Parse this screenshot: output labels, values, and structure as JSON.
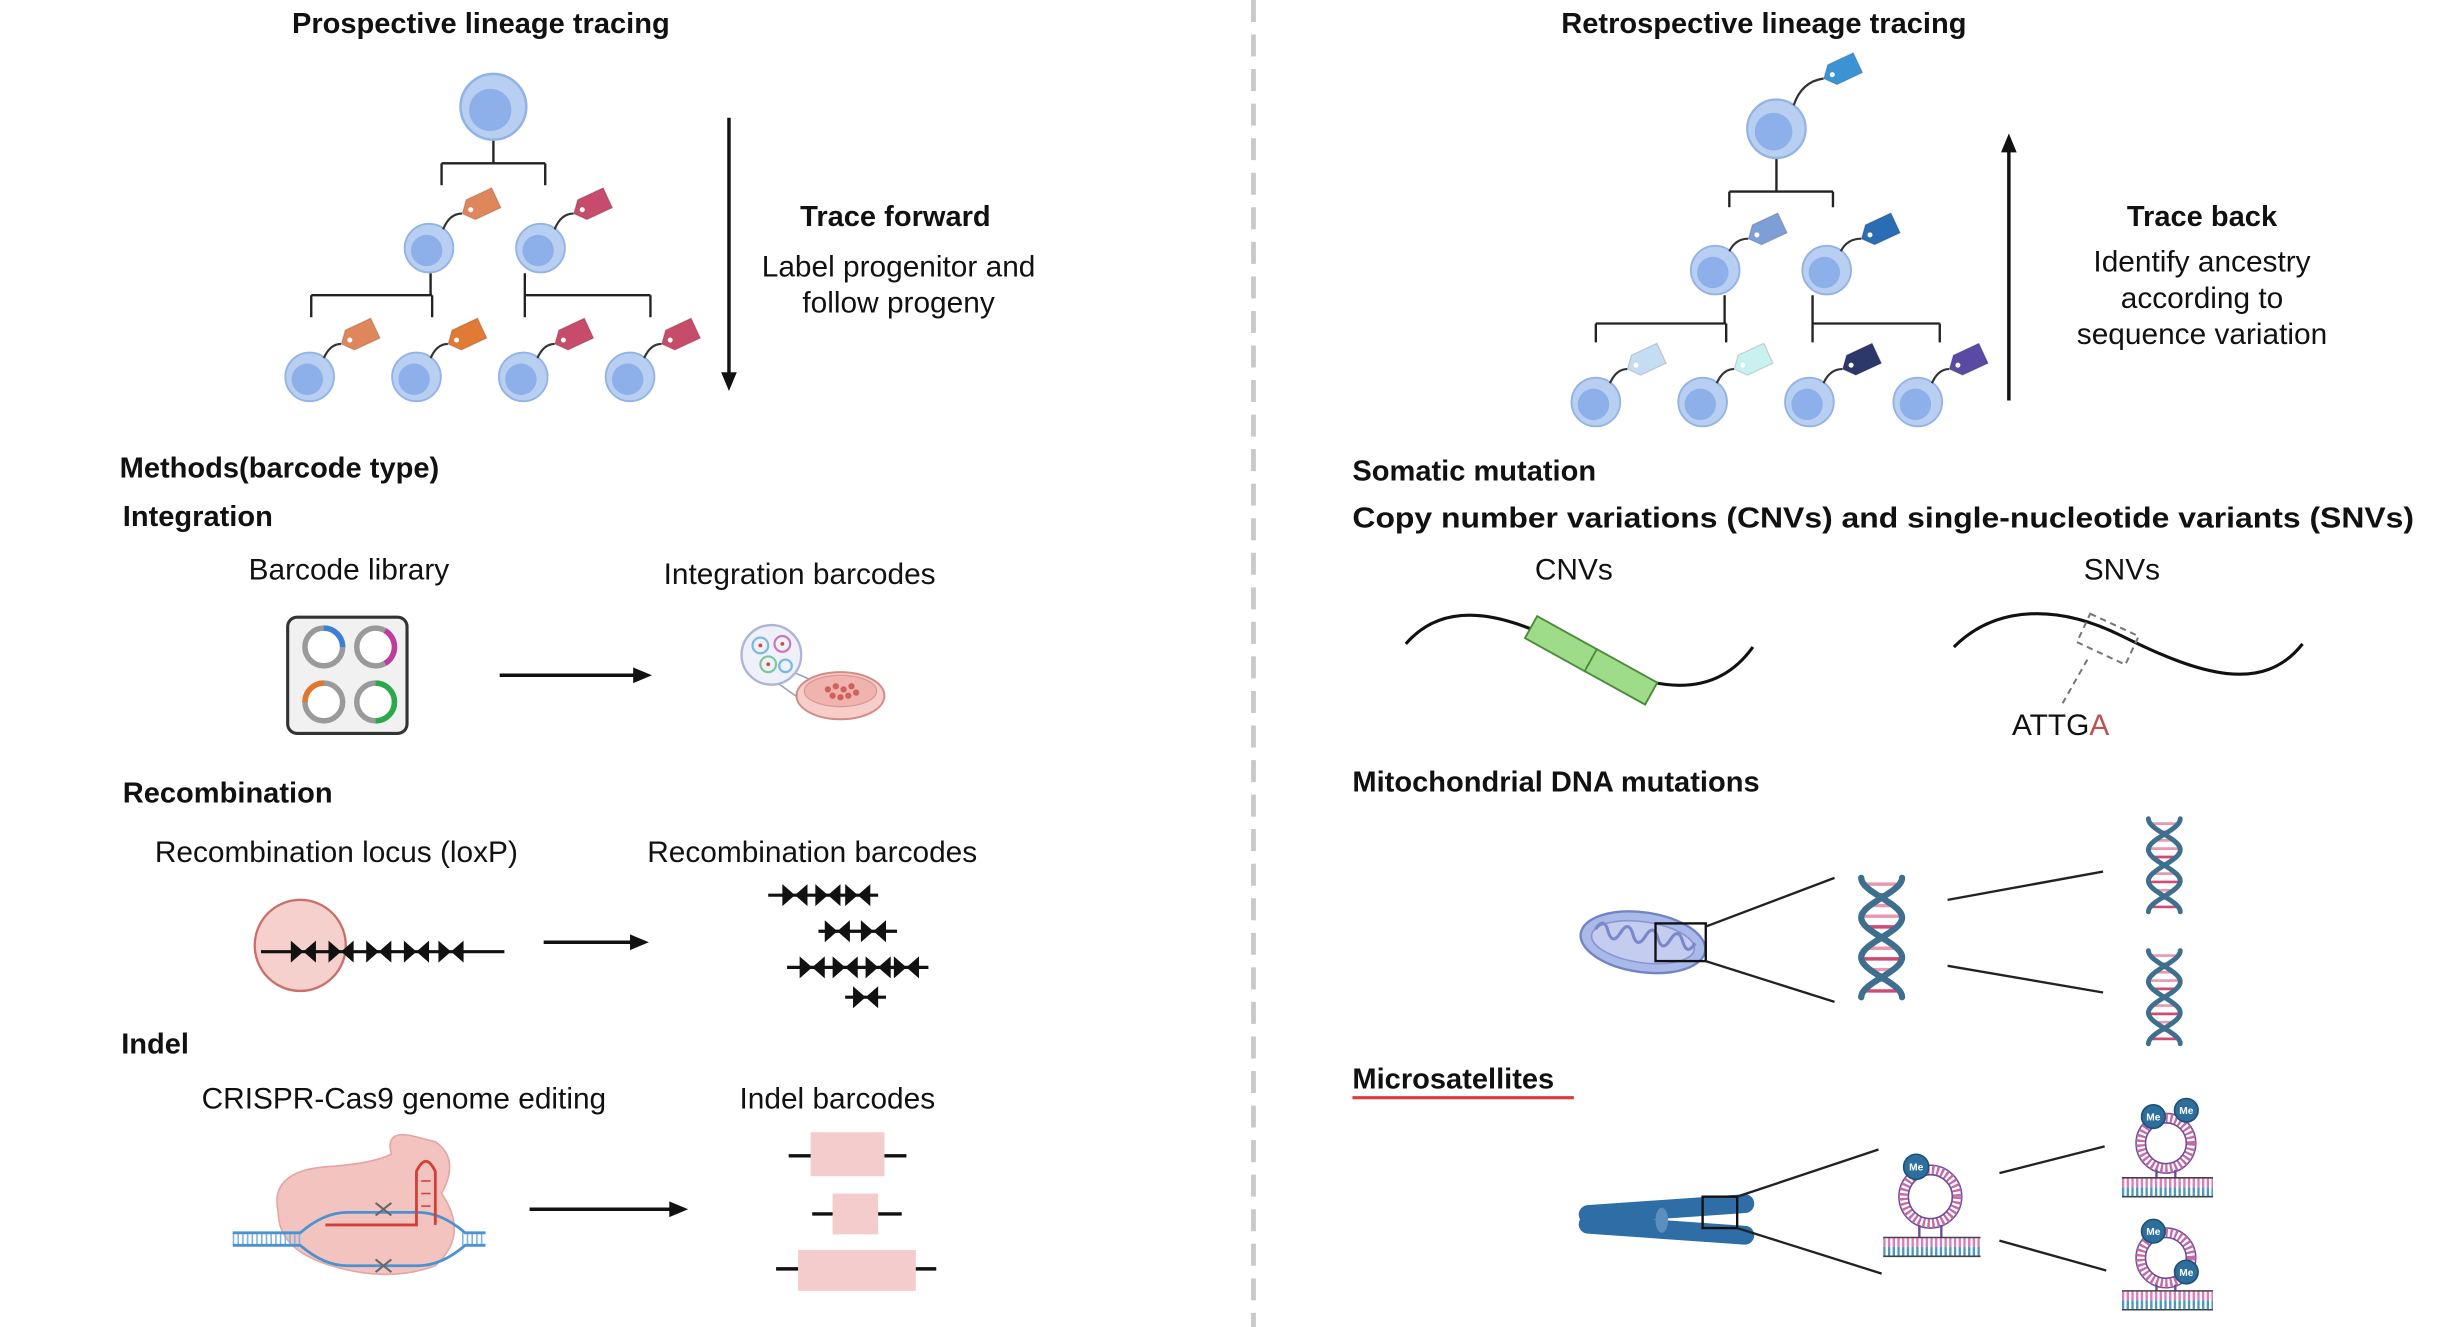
{
  "prospective": {
    "title": "Prospective lineage tracing",
    "trace_title": "Trace forward",
    "trace_line1": "Label progenitor and",
    "trace_line2": "follow progeny"
  },
  "methods": {
    "heading": "Methods(barcode type)",
    "integration": {
      "heading": "Integration",
      "source_label": "Barcode library",
      "result_label": "Integration barcodes"
    },
    "recombination": {
      "heading": "Recombination",
      "source_label": "Recombination locus (loxP)",
      "result_label": "Recombination barcodes"
    },
    "indel": {
      "heading": "Indel",
      "source_label": "CRISPR-Cas9 genome editing",
      "result_label": "Indel barcodes"
    }
  },
  "retrospective": {
    "title": "Retrospective lineage tracing",
    "trace_title": "Trace back",
    "trace_line1": "Identify ancestry",
    "trace_line2": "according to",
    "trace_line3": "sequence variation"
  },
  "somatic": {
    "heading": "Somatic mutation",
    "cnv_snv_heading": "Copy number variations (CNVs) and single-nucleotide variants (SNVs)",
    "cnv_label": "CNVs",
    "snv_label": "SNVs",
    "snv_sequence": "ATTG",
    "snv_variant_base": "A",
    "mito_heading": "Mitochondrial DNA mutations",
    "micro_heading": "Microsatellites",
    "methylation_label": "Me"
  },
  "colors": {
    "tag_orange_light": "#e0865c",
    "tag_orange": "#e07a35",
    "tag_crimson": "#c74c6b",
    "tag_blue_top": "#3b93d3",
    "tag_blue_mid": "#7e9ed6",
    "tag_blue_dark": "#2a6db5",
    "tag_pale_blue": "#c5ddf3",
    "tag_pale_cyan": "#c9f1ef",
    "tag_navy": "#2c376a",
    "tag_violet": "#5b4aa3",
    "variant_red": "#c0504d",
    "underline_red": "#e0393a"
  },
  "icons": [
    "cell-icon",
    "barcode-tag-icon",
    "plasmid-plate-icon",
    "petri-dish-icon",
    "loxp-site-icon",
    "crispr-cas9-icon",
    "chromosome-icon",
    "mitochondrion-icon",
    "dna-helix-icon",
    "methyl-group-icon"
  ]
}
